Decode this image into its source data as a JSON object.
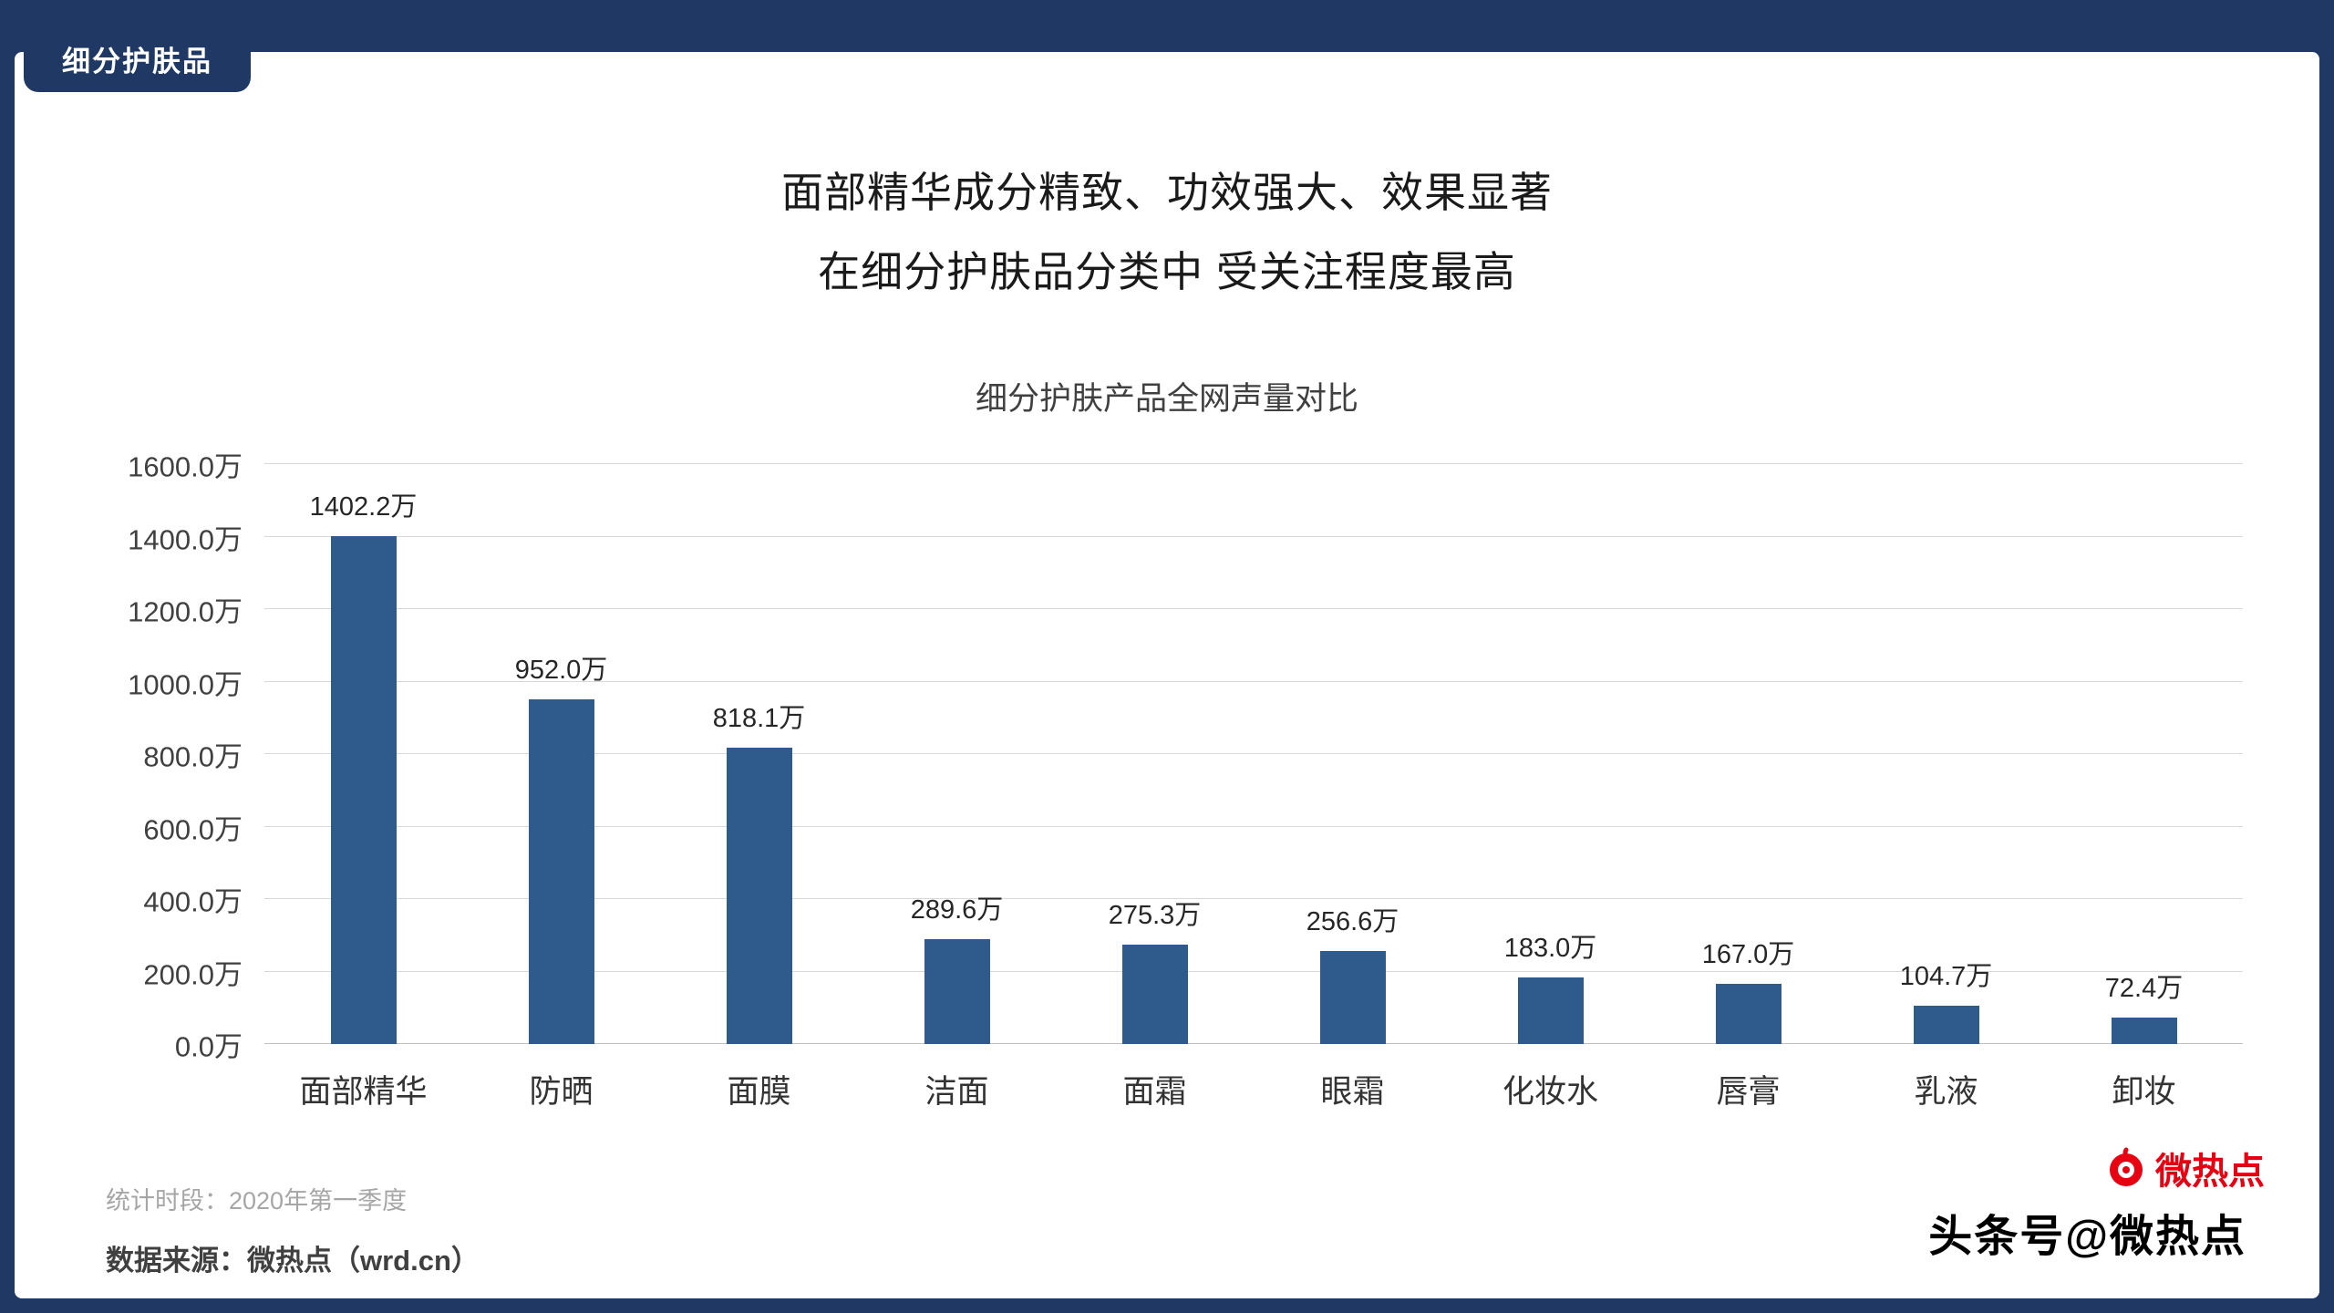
{
  "badge": {
    "label": "细分护肤品"
  },
  "title": {
    "line1": "面部精华成分精致、功效强大、效果显著",
    "line2": "在细分护肤品分类中 受关注程度最高"
  },
  "chart_data": {
    "type": "bar",
    "title": "细分护肤产品全网声量对比",
    "categories": [
      "面部精华",
      "防晒",
      "面膜",
      "洁面",
      "面霜",
      "眼霜",
      "化妆水",
      "唇膏",
      "乳液",
      "卸妆"
    ],
    "values": [
      1402.2,
      952.0,
      818.1,
      289.6,
      275.3,
      256.6,
      183.0,
      167.0,
      104.7,
      72.4
    ],
    "value_labels": [
      "1402.2万",
      "952.0万",
      "818.1万",
      "289.6万",
      "275.3万",
      "256.6万",
      "183.0万",
      "167.0万",
      "104.7万",
      "72.4万"
    ],
    "unit": "万",
    "ylim": [
      0,
      1600
    ],
    "ytick_step": 200,
    "ytick_labels": [
      "0.0万",
      "200.0万",
      "400.0万",
      "600.0万",
      "800.0万",
      "1000.0万",
      "1200.0万",
      "1400.0万",
      "1600.0万"
    ],
    "xlabel": "",
    "ylabel": "",
    "grid": true,
    "legend": "none",
    "bar_color": "#2f5b8c"
  },
  "footer": {
    "period": "统计时段：2020年第一季度",
    "source": "数据来源：微热点（wrd.cn）"
  },
  "watermark": {
    "overlay_black": "头条号@微热点",
    "brand_red": "微热点"
  },
  "colors": {
    "background": "#203864",
    "panel": "#ffffff",
    "bar": "#2f5b8c",
    "gridline": "#d9d9d9",
    "brand_red": "#e60012"
  }
}
